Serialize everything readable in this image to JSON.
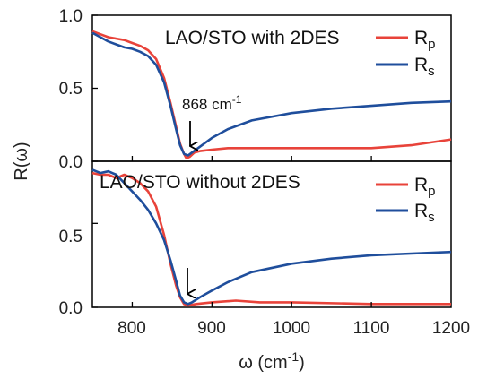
{
  "chart_data": {
    "type": "line",
    "xlabel": "ω (cm-1)",
    "ylabel": "R(ω)",
    "xlim": [
      750,
      1200
    ],
    "x_ticks": [
      "800",
      "900",
      "1000",
      "1100",
      "1200"
    ],
    "legend_placement": "top-right",
    "grid": false,
    "colors": {
      "Rp": "#e8433a",
      "Rs": "#1f4e9c"
    },
    "panels": [
      {
        "annotation": "LAO/STO with 2DES",
        "ylim": [
          0,
          1.0
        ],
        "y_ticks": [
          "1.0",
          "0.5",
          "0.0"
        ],
        "arrow": {
          "x": 868,
          "label": "868 cm-1"
        },
        "series": [
          {
            "name": "Rp",
            "x": [
              750,
              760,
              770,
              780,
              790,
              800,
              810,
              820,
              830,
              840,
              848,
              855,
              860,
              865,
              868,
              872,
              878,
              885,
              900,
              920,
              950,
              1000,
              1050,
              1100,
              1150,
              1200
            ],
            "y": [
              0.89,
              0.87,
              0.85,
              0.84,
              0.83,
              0.81,
              0.79,
              0.76,
              0.7,
              0.57,
              0.4,
              0.24,
              0.12,
              0.05,
              0.02,
              0.03,
              0.06,
              0.07,
              0.08,
              0.09,
              0.09,
              0.09,
              0.09,
              0.09,
              0.11,
              0.15
            ]
          },
          {
            "name": "Rs",
            "x": [
              750,
              760,
              770,
              780,
              790,
              800,
              810,
              820,
              830,
              840,
              848,
              855,
              860,
              865,
              870,
              875,
              885,
              900,
              920,
              950,
              1000,
              1050,
              1100,
              1150,
              1200
            ],
            "y": [
              0.88,
              0.85,
              0.82,
              0.8,
              0.78,
              0.77,
              0.75,
              0.72,
              0.66,
              0.54,
              0.38,
              0.22,
              0.11,
              0.05,
              0.04,
              0.06,
              0.1,
              0.16,
              0.22,
              0.28,
              0.33,
              0.36,
              0.38,
              0.4,
              0.41
            ]
          }
        ]
      },
      {
        "annotation": "LAO/STO without 2DES",
        "ylim": [
          0,
          0.87
        ],
        "y_ticks": [
          "0.5",
          "0.0"
        ],
        "arrow": {
          "x": 868,
          "label": ""
        },
        "series": [
          {
            "name": "Rp",
            "x": [
              750,
              760,
              770,
              780,
              790,
              800,
              810,
              820,
              830,
              840,
              848,
              855,
              860,
              865,
              870,
              880,
              900,
              930,
              960,
              1000,
              1100,
              1200
            ],
            "y": [
              0.8,
              0.79,
              0.79,
              0.77,
              0.79,
              0.77,
              0.74,
              0.69,
              0.6,
              0.43,
              0.26,
              0.13,
              0.06,
              0.02,
              0.01,
              0.02,
              0.03,
              0.04,
              0.03,
              0.03,
              0.02,
              0.02
            ]
          },
          {
            "name": "Rs",
            "x": [
              750,
              760,
              770,
              780,
              790,
              800,
              810,
              820,
              830,
              840,
              848,
              855,
              860,
              865,
              870,
              875,
              885,
              900,
              920,
              950,
              1000,
              1050,
              1100,
              1150,
              1200
            ],
            "y": [
              0.82,
              0.8,
              0.81,
              0.79,
              0.74,
              0.69,
              0.64,
              0.58,
              0.5,
              0.4,
              0.28,
              0.16,
              0.07,
              0.03,
              0.02,
              0.03,
              0.06,
              0.1,
              0.15,
              0.21,
              0.26,
              0.29,
              0.31,
              0.32,
              0.33
            ]
          }
        ]
      }
    ]
  }
}
